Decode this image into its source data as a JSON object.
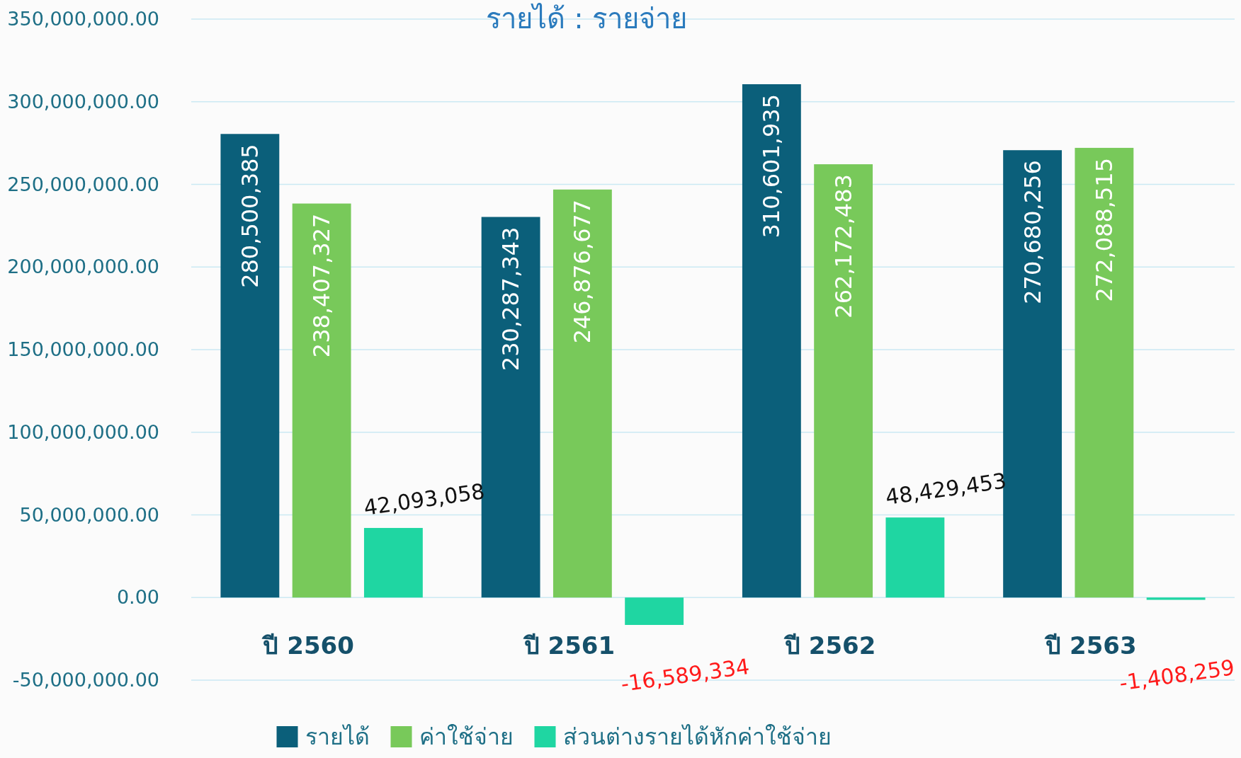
{
  "chart_data": {
    "type": "bar",
    "title": "รายได้ : รายจ่าย",
    "categories": [
      "ปี 2560",
      "ปี 2561",
      "ปี 2562",
      "ปี 2563"
    ],
    "series": [
      {
        "name": "รายได้",
        "color": "#0b5f7a",
        "values": [
          280500385,
          230287343,
          310601935,
          270680256
        ],
        "value_labels": [
          "280,500,385",
          "230,287,343",
          "310,601,935",
          "270,680,256"
        ]
      },
      {
        "name": "ค่าใช้จ่าย",
        "color": "#78c95a",
        "values": [
          238407327,
          246876677,
          262172483,
          272088515
        ],
        "value_labels": [
          "238,407,327",
          "246,876,677",
          "262,172,483",
          "272,088,515"
        ]
      },
      {
        "name": "ส่วนต่างรายได้หักค่าใช้จ่าย",
        "color": "#1fd6a2",
        "values": [
          42093058,
          -16589334,
          48429453,
          -1408259
        ],
        "value_labels": [
          "42,093,058",
          "-16,589,334",
          "48,429,453",
          "-1,408,259"
        ]
      }
    ],
    "ylim": [
      -50000000,
      350000000
    ],
    "yticks": [
      {
        "value": -50000000,
        "label": "-50,000,000.00"
      },
      {
        "value": 0,
        "label": "0.00"
      },
      {
        "value": 50000000,
        "label": "50,000,000.00"
      },
      {
        "value": 100000000,
        "label": "100,000,000.00"
      },
      {
        "value": 150000000,
        "label": "150,000,000.00"
      },
      {
        "value": 200000000,
        "label": "200,000,000.00"
      },
      {
        "value": 250000000,
        "label": "250,000,000.00"
      },
      {
        "value": 300000000,
        "label": "300,000,000.00"
      },
      {
        "value": 350000000,
        "label": "350,000,000.00"
      }
    ],
    "grid": "y",
    "legend": "bottom"
  }
}
